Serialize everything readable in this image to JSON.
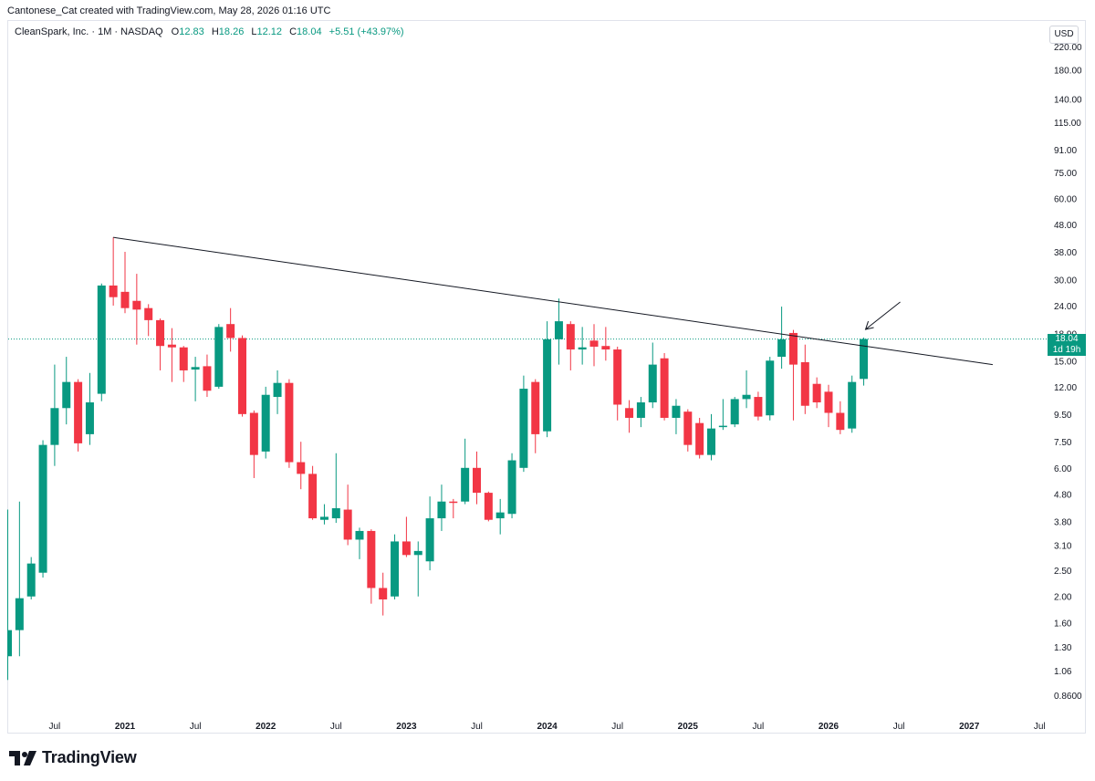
{
  "header": {
    "credit": "Cantonese_Cat created with TradingView.com, May 28, 2026 01:16 UTC"
  },
  "legend": {
    "symbol": "CleanSpark, Inc. · 1M · NASDAQ",
    "o_label": "O",
    "o_value": "12.83",
    "h_label": "H",
    "h_value": "18.26",
    "l_label": "L",
    "l_value": "12.12",
    "c_label": "C",
    "c_value": "18.04",
    "change": "+5.51 (+43.97%)"
  },
  "currency": "USD",
  "price_tag": {
    "price": "18.04",
    "countdown": "1d 19h"
  },
  "brand": {
    "name": "TradingView"
  },
  "colors": {
    "up": "#089981",
    "down": "#f23645",
    "trendline": "#131722",
    "text": "#131722"
  },
  "chart_data": {
    "type": "candlestick",
    "scale": "log",
    "y_ticks": [
      220,
      180,
      140,
      115,
      91,
      75,
      60,
      48,
      38,
      30,
      24,
      18.9,
      15,
      12,
      9.5,
      7.5,
      6,
      4.8,
      3.8,
      3.1,
      2.5,
      2,
      1.6,
      1.3,
      1.06,
      0.86
    ],
    "y_tick_labels": [
      "220.00",
      "180.00",
      "140.00",
      "115.00",
      "91.00",
      "75.00",
      "60.00",
      "48.00",
      "38.00",
      "30.00",
      "24.00",
      "18.90",
      "15.00",
      "12.00",
      "9.50",
      "7.50",
      "6.00",
      "4.80",
      "3.80",
      "3.10",
      "2.50",
      "2.00",
      "1.60",
      "1.30",
      "1.06",
      "0.8600"
    ],
    "x_ticks": [
      {
        "date": "2020-07",
        "label": "Jul"
      },
      {
        "date": "2021-01",
        "label": "2021"
      },
      {
        "date": "2021-07",
        "label": "Jul"
      },
      {
        "date": "2022-01",
        "label": "2022"
      },
      {
        "date": "2022-07",
        "label": "Jul"
      },
      {
        "date": "2023-01",
        "label": "2023"
      },
      {
        "date": "2023-07",
        "label": "Jul"
      },
      {
        "date": "2024-01",
        "label": "2024"
      },
      {
        "date": "2024-07",
        "label": "Jul"
      },
      {
        "date": "2025-01",
        "label": "2025"
      },
      {
        "date": "2025-07",
        "label": "Jul"
      },
      {
        "date": "2026-01",
        "label": "2026"
      },
      {
        "date": "2026-07",
        "label": "Jul"
      },
      {
        "date": "2027-01",
        "label": "2027"
      },
      {
        "date": "2027-07",
        "label": "Jul"
      }
    ],
    "candles": [
      {
        "date": "2020-02",
        "o": 2.75,
        "h": 2.75,
        "l": 1.2,
        "c": 1.2
      },
      {
        "date": "2020-03",
        "o": 1.2,
        "h": 4.2,
        "l": 0.98,
        "c": 1.5
      },
      {
        "date": "2020-04",
        "o": 1.5,
        "h": 4.5,
        "l": 1.2,
        "c": 1.97
      },
      {
        "date": "2020-05",
        "o": 2.0,
        "h": 2.8,
        "l": 1.95,
        "c": 2.65
      },
      {
        "date": "2020-06",
        "o": 2.45,
        "h": 7.6,
        "l": 2.35,
        "c": 7.3
      },
      {
        "date": "2020-07",
        "o": 7.3,
        "h": 14.5,
        "l": 6.1,
        "c": 10.0
      },
      {
        "date": "2020-08",
        "o": 10.0,
        "h": 15.5,
        "l": 8.7,
        "c": 12.5
      },
      {
        "date": "2020-09",
        "o": 12.5,
        "h": 12.8,
        "l": 6.9,
        "c": 7.4
      },
      {
        "date": "2020-10",
        "o": 8.0,
        "h": 13.5,
        "l": 7.3,
        "c": 10.5
      },
      {
        "date": "2020-11",
        "o": 11.3,
        "h": 29.0,
        "l": 10.6,
        "c": 28.5
      },
      {
        "date": "2020-12",
        "o": 28.5,
        "h": 43.0,
        "l": 24.0,
        "c": 25.8
      },
      {
        "date": "2021-01",
        "o": 27.0,
        "h": 38.0,
        "l": 22.5,
        "c": 23.5
      },
      {
        "date": "2021-02",
        "o": 25.0,
        "h": 31.5,
        "l": 17.2,
        "c": 23.2
      },
      {
        "date": "2021-03",
        "o": 23.5,
        "h": 24.3,
        "l": 18.5,
        "c": 21.2
      },
      {
        "date": "2021-04",
        "o": 21.2,
        "h": 21.5,
        "l": 13.8,
        "c": 17.0
      },
      {
        "date": "2021-05",
        "o": 17.2,
        "h": 19.8,
        "l": 12.5,
        "c": 16.8
      },
      {
        "date": "2021-06",
        "o": 16.8,
        "h": 17.0,
        "l": 12.5,
        "c": 13.8
      },
      {
        "date": "2021-07",
        "o": 13.9,
        "h": 15.5,
        "l": 10.6,
        "c": 14.2
      },
      {
        "date": "2021-08",
        "o": 14.3,
        "h": 15.8,
        "l": 11.0,
        "c": 11.6
      },
      {
        "date": "2021-09",
        "o": 12.0,
        "h": 20.5,
        "l": 11.8,
        "c": 20.0
      },
      {
        "date": "2021-10",
        "o": 20.5,
        "h": 23.5,
        "l": 16.2,
        "c": 18.2
      },
      {
        "date": "2021-11",
        "o": 18.2,
        "h": 18.6,
        "l": 9.3,
        "c": 9.5
      },
      {
        "date": "2021-12",
        "o": 9.6,
        "h": 9.8,
        "l": 5.5,
        "c": 6.7
      },
      {
        "date": "2022-01",
        "o": 6.9,
        "h": 12.0,
        "l": 6.5,
        "c": 11.2
      },
      {
        "date": "2022-02",
        "o": 11.0,
        "h": 13.8,
        "l": 9.5,
        "c": 12.4
      },
      {
        "date": "2022-03",
        "o": 12.4,
        "h": 12.8,
        "l": 6.0,
        "c": 6.3
      },
      {
        "date": "2022-04",
        "o": 6.3,
        "h": 7.5,
        "l": 5.0,
        "c": 5.7
      },
      {
        "date": "2022-05",
        "o": 5.7,
        "h": 6.1,
        "l": 3.85,
        "c": 3.9
      },
      {
        "date": "2022-06",
        "o": 3.85,
        "h": 4.4,
        "l": 3.7,
        "c": 3.95
      },
      {
        "date": "2022-07",
        "o": 3.9,
        "h": 6.8,
        "l": 3.75,
        "c": 4.25
      },
      {
        "date": "2022-08",
        "o": 4.2,
        "h": 5.2,
        "l": 3.1,
        "c": 3.25
      },
      {
        "date": "2022-09",
        "o": 3.25,
        "h": 3.6,
        "l": 2.75,
        "c": 3.5
      },
      {
        "date": "2022-10",
        "o": 3.5,
        "h": 3.55,
        "l": 1.88,
        "c": 2.15
      },
      {
        "date": "2022-11",
        "o": 2.15,
        "h": 2.45,
        "l": 1.7,
        "c": 1.95
      },
      {
        "date": "2022-12",
        "o": 2.0,
        "h": 3.4,
        "l": 1.95,
        "c": 3.2
      },
      {
        "date": "2023-01",
        "o": 3.2,
        "h": 3.95,
        "l": 2.8,
        "c": 2.85
      },
      {
        "date": "2023-02",
        "o": 2.85,
        "h": 3.2,
        "l": 2.0,
        "c": 2.95
      },
      {
        "date": "2023-03",
        "o": 2.7,
        "h": 4.7,
        "l": 2.5,
        "c": 3.9
      },
      {
        "date": "2023-04",
        "o": 3.9,
        "h": 5.2,
        "l": 3.5,
        "c": 4.5
      },
      {
        "date": "2023-05",
        "o": 4.5,
        "h": 4.6,
        "l": 3.9,
        "c": 4.45
      },
      {
        "date": "2023-06",
        "o": 4.5,
        "h": 7.7,
        "l": 4.4,
        "c": 6.0
      },
      {
        "date": "2023-07",
        "o": 6.0,
        "h": 6.9,
        "l": 4.4,
        "c": 4.85
      },
      {
        "date": "2023-08",
        "o": 4.85,
        "h": 4.9,
        "l": 3.8,
        "c": 3.85
      },
      {
        "date": "2023-09",
        "o": 3.9,
        "h": 4.6,
        "l": 3.4,
        "c": 4.1
      },
      {
        "date": "2023-10",
        "o": 4.05,
        "h": 6.8,
        "l": 3.9,
        "c": 6.4
      },
      {
        "date": "2023-11",
        "o": 6.0,
        "h": 13.2,
        "l": 5.8,
        "c": 11.8
      },
      {
        "date": "2023-12",
        "o": 12.5,
        "h": 12.8,
        "l": 6.8,
        "c": 8.0
      },
      {
        "date": "2024-01",
        "o": 8.2,
        "h": 21.0,
        "l": 7.8,
        "c": 18.0
      },
      {
        "date": "2024-02",
        "o": 18.0,
        "h": 25.5,
        "l": 14.5,
        "c": 21.0
      },
      {
        "date": "2024-03",
        "o": 20.5,
        "h": 21.0,
        "l": 13.8,
        "c": 16.5
      },
      {
        "date": "2024-04",
        "o": 16.5,
        "h": 20.0,
        "l": 14.5,
        "c": 16.8
      },
      {
        "date": "2024-05",
        "o": 17.8,
        "h": 20.5,
        "l": 14.3,
        "c": 16.9
      },
      {
        "date": "2024-06",
        "o": 17.0,
        "h": 20.0,
        "l": 15.0,
        "c": 16.5
      },
      {
        "date": "2024-07",
        "o": 16.5,
        "h": 16.9,
        "l": 9.0,
        "c": 10.3
      },
      {
        "date": "2024-08",
        "o": 10.0,
        "h": 10.7,
        "l": 8.1,
        "c": 9.2
      },
      {
        "date": "2024-09",
        "o": 9.2,
        "h": 11.0,
        "l": 8.5,
        "c": 10.5
      },
      {
        "date": "2024-10",
        "o": 10.5,
        "h": 17.5,
        "l": 10.0,
        "c": 14.5
      },
      {
        "date": "2024-11",
        "o": 15.3,
        "h": 16.0,
        "l": 9.0,
        "c": 9.2
      },
      {
        "date": "2024-12",
        "o": 9.2,
        "h": 10.8,
        "l": 8.0,
        "c": 10.2
      },
      {
        "date": "2025-01",
        "o": 9.7,
        "h": 9.9,
        "l": 6.9,
        "c": 7.3
      },
      {
        "date": "2025-02",
        "o": 8.8,
        "h": 9.2,
        "l": 6.5,
        "c": 6.7
      },
      {
        "date": "2025-03",
        "o": 6.7,
        "h": 9.5,
        "l": 6.4,
        "c": 8.4
      },
      {
        "date": "2025-04",
        "o": 8.5,
        "h": 10.8,
        "l": 8.3,
        "c": 8.6
      },
      {
        "date": "2025-05",
        "o": 8.7,
        "h": 11.0,
        "l": 8.5,
        "c": 10.8
      },
      {
        "date": "2025-06",
        "o": 10.8,
        "h": 13.8,
        "l": 10.0,
        "c": 11.2
      },
      {
        "date": "2025-07",
        "o": 11.0,
        "h": 11.5,
        "l": 9.0,
        "c": 9.3
      },
      {
        "date": "2025-08",
        "o": 9.4,
        "h": 15.5,
        "l": 9.0,
        "c": 15.0
      },
      {
        "date": "2025-09",
        "o": 15.5,
        "h": 23.8,
        "l": 14.0,
        "c": 18.0
      },
      {
        "date": "2025-10",
        "o": 19.0,
        "h": 19.5,
        "l": 9.0,
        "c": 14.5
      },
      {
        "date": "2025-11",
        "o": 14.8,
        "h": 17.2,
        "l": 9.5,
        "c": 10.2
      },
      {
        "date": "2025-12",
        "o": 12.3,
        "h": 13.0,
        "l": 10.0,
        "c": 10.5
      },
      {
        "date": "2026-01",
        "o": 11.5,
        "h": 12.2,
        "l": 8.5,
        "c": 9.6
      },
      {
        "date": "2026-02",
        "o": 9.6,
        "h": 10.6,
        "l": 8.0,
        "c": 8.3
      },
      {
        "date": "2026-03",
        "o": 8.4,
        "h": 13.2,
        "l": 8.1,
        "c": 12.5
      },
      {
        "date": "2026-04",
        "o": 12.83,
        "h": 18.26,
        "l": 12.12,
        "c": 18.04
      }
    ],
    "trendline": {
      "start": {
        "date": "2020-12",
        "value": 43.0
      },
      "end": {
        "date": "2027-03",
        "value": 14.5
      }
    },
    "last_price_line": 18.04
  }
}
